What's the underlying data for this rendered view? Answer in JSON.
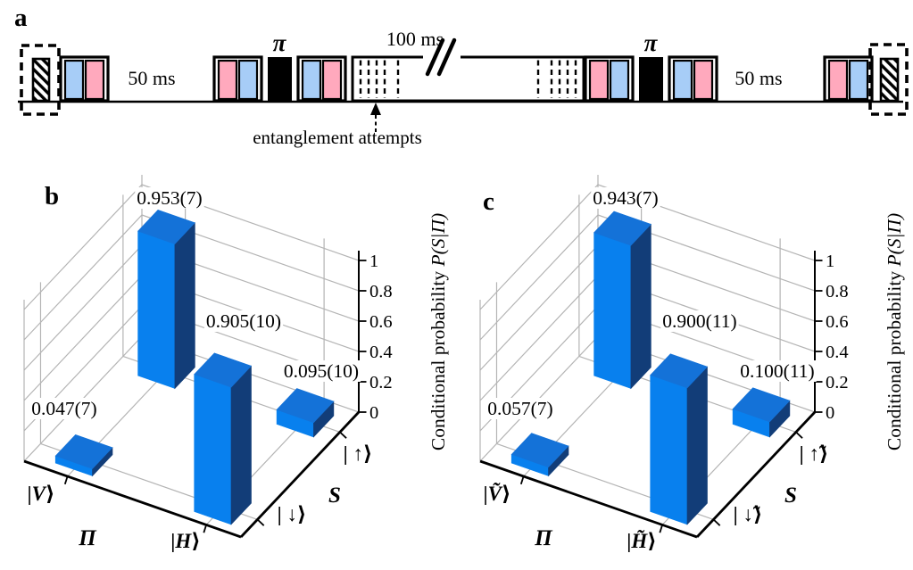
{
  "panel_a": {
    "label": "a",
    "colors": {
      "pink": "#ffa9bd",
      "blue": "#a7cdf7",
      "pi_pulse": "#000000"
    },
    "text": {
      "delay_left": "50 ms",
      "pi_left": "π",
      "wait": "100 ms",
      "annotation": "entanglement attempts",
      "pi_right": "π",
      "delay_right": "50 ms"
    }
  },
  "panel_b": {
    "label": "b"
  },
  "panel_c": {
    "label": "c"
  },
  "chart_data": [
    {
      "type": "bar",
      "style": "3d",
      "panel": "b",
      "x_axis": {
        "label": "Π",
        "categories": [
          "|V⟩",
          "|H⟩"
        ]
      },
      "depth_axis": {
        "label": "S",
        "categories": [
          "| ↓⟩",
          "| ↑⟩"
        ]
      },
      "z_axis": {
        "label_roman": "Conditional probability ",
        "label_math": "P(S|Π)",
        "ticks": [
          "0",
          "0.2",
          "0.4",
          "0.6",
          "0.8",
          "1"
        ],
        "range": [
          0,
          1
        ],
        "grid": true
      },
      "bars": [
        {
          "x": "|V⟩",
          "depth": "| ↓⟩",
          "value": 0.047,
          "label": "0.047(7)"
        },
        {
          "x": "|V⟩",
          "depth": "| ↑⟩",
          "value": 0.953,
          "label": "0.953(7)"
        },
        {
          "x": "|H⟩",
          "depth": "| ↓⟩",
          "value": 0.905,
          "label": "0.905(10)"
        },
        {
          "x": "|H⟩",
          "depth": "| ↑⟩",
          "value": 0.095,
          "label": "0.095(10)"
        }
      ],
      "bar_colors": {
        "front": "#0880ee",
        "side": "#123d78",
        "top": "#1472d8"
      }
    },
    {
      "type": "bar",
      "style": "3d",
      "panel": "c",
      "x_axis": {
        "label": "Π",
        "categories": [
          "|Ṽ⟩",
          "|H̃⟩"
        ]
      },
      "depth_axis": {
        "label": "S",
        "categories": [
          "| ↓̃⟩",
          "| ↑̃⟩"
        ]
      },
      "z_axis": {
        "label_roman": "Conditional probability ",
        "label_math": "P(S|Π)",
        "ticks": [
          "0",
          "0.2",
          "0.4",
          "0.6",
          "0.8",
          "1"
        ],
        "range": [
          0,
          1
        ],
        "grid": true
      },
      "bars": [
        {
          "x": "|Ṽ⟩",
          "depth": "| ↓̃⟩",
          "value": 0.057,
          "label": "0.057(7)"
        },
        {
          "x": "|Ṽ⟩",
          "depth": "| ↑̃⟩",
          "value": 0.943,
          "label": "0.943(7)"
        },
        {
          "x": "|H̃⟩",
          "depth": "| ↓̃⟩",
          "value": 0.9,
          "label": "0.900(11)"
        },
        {
          "x": "|H̃⟩",
          "depth": "| ↑̃⟩",
          "value": 0.1,
          "label": "0.100(11)"
        }
      ],
      "bar_colors": {
        "front": "#0880ee",
        "side": "#123d78",
        "top": "#1472d8"
      }
    }
  ]
}
